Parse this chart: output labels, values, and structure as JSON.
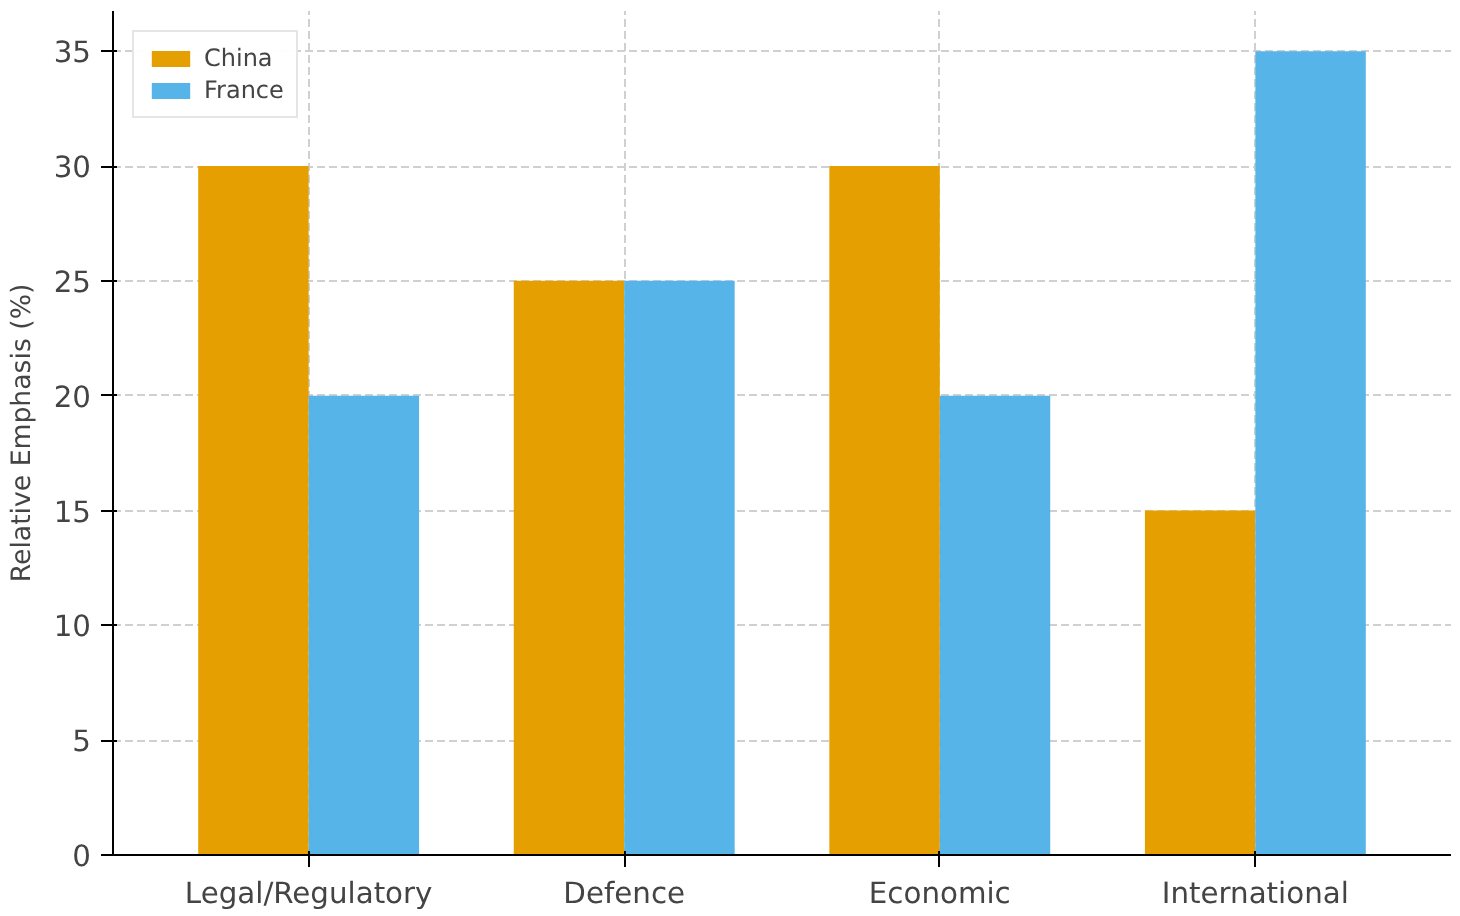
{
  "chart_data": {
    "type": "bar",
    "ylabel": "Relative Emphasis (%)",
    "categories": [
      "Legal/Regulatory",
      "Defence",
      "Economic",
      "International"
    ],
    "series": [
      {
        "name": "China",
        "color": "#e69f00",
        "values": [
          30,
          25,
          30,
          15
        ]
      },
      {
        "name": "France",
        "color": "#56b4e9",
        "values": [
          20,
          25,
          20,
          35
        ]
      }
    ],
    "ylim": [
      0,
      36.75
    ],
    "yticks": [
      0,
      5,
      10,
      15,
      20,
      25,
      30,
      35
    ],
    "grid": true,
    "legend": "top left"
  }
}
